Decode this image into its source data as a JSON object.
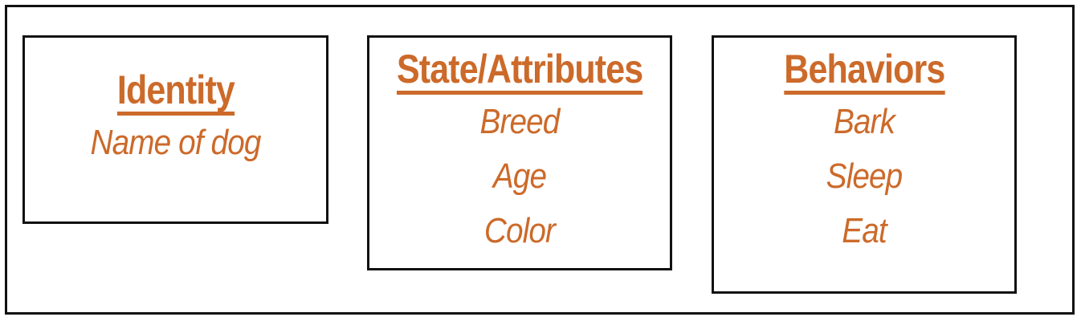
{
  "colors": {
    "accent": "#cc6a2a",
    "border": "#111111",
    "background": "#ffffff"
  },
  "identity": {
    "heading": "Identity",
    "items": [
      "Name of dog"
    ]
  },
  "state": {
    "heading": "State/Attributes",
    "items": [
      "Breed",
      "Age",
      "Color"
    ]
  },
  "behaviors": {
    "heading": "Behaviors",
    "items": [
      "Bark",
      "Sleep",
      "Eat"
    ]
  }
}
